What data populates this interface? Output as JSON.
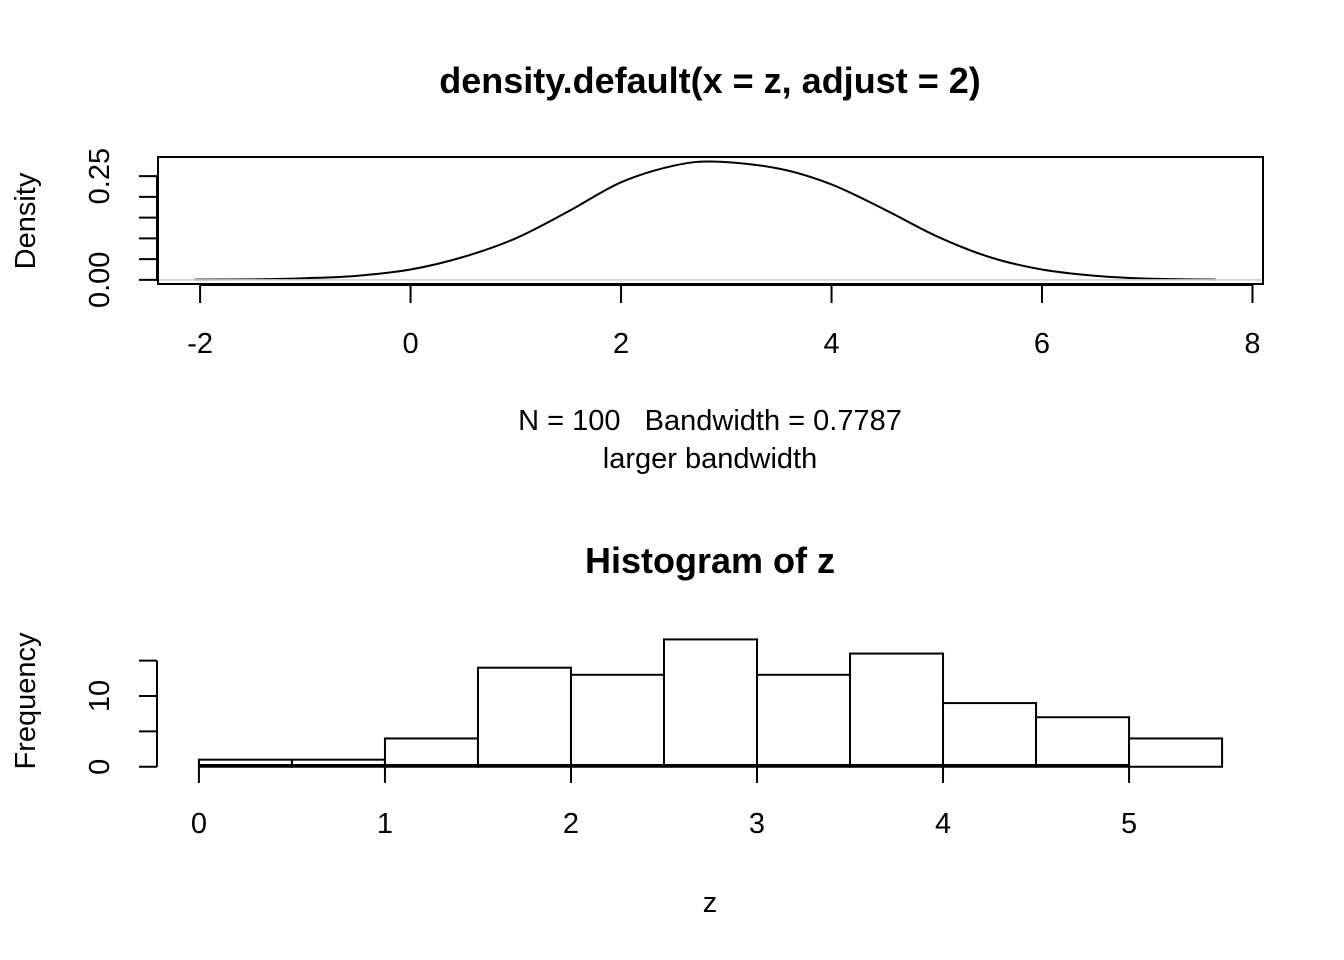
{
  "chart_data": [
    {
      "type": "line",
      "title": "density.default(x = z, adjust = 2)",
      "xlabel": "N = 100   Bandwidth = 0.7787",
      "subtitle": "larger bandwidth",
      "ylabel": "Density",
      "xlim": [
        -2.4,
        8.1
      ],
      "ylim": [
        -0.01,
        0.296
      ],
      "x_ticks": [
        "-2",
        "0",
        "2",
        "4",
        "6",
        "8"
      ],
      "y_ticks": [
        "0.00",
        "0.25"
      ],
      "y_minor_ticks": [
        0.05,
        0.1,
        0.15,
        0.2
      ],
      "grid": false,
      "x": [
        -2.05,
        -1.5,
        -1.0,
        -0.5,
        0.0,
        0.5,
        1.0,
        1.5,
        2.0,
        2.5,
        2.9,
        3.5,
        4.0,
        4.5,
        5.0,
        5.5,
        6.0,
        6.5,
        7.0,
        7.65
      ],
      "y": [
        0.0005,
        0.0012,
        0.004,
        0.01,
        0.025,
        0.055,
        0.1,
        0.165,
        0.235,
        0.275,
        0.285,
        0.268,
        0.23,
        0.17,
        0.105,
        0.055,
        0.025,
        0.01,
        0.003,
        0.0005
      ],
      "baseline": 0
    },
    {
      "type": "bar",
      "title": "Histogram of z",
      "xlabel": "z",
      "ylabel": "Frequency",
      "xlim": [
        -0.22,
        5.72
      ],
      "ylim": [
        -0.6,
        18.2
      ],
      "x_ticks": [
        "0",
        "1",
        "2",
        "3",
        "4",
        "5"
      ],
      "y_ticks": [
        "0",
        "10"
      ],
      "y_minor_ticks": [
        5,
        15
      ],
      "grid": false,
      "bins": [
        {
          "x0": 0.0,
          "x1": 0.5,
          "count": 1
        },
        {
          "x0": 0.5,
          "x1": 1.0,
          "count": 1
        },
        {
          "x0": 1.0,
          "x1": 1.5,
          "count": 4
        },
        {
          "x0": 1.5,
          "x1": 2.0,
          "count": 14
        },
        {
          "x0": 2.0,
          "x1": 2.5,
          "count": 13
        },
        {
          "x0": 2.5,
          "x1": 3.0,
          "count": 18
        },
        {
          "x0": 3.0,
          "x1": 3.5,
          "count": 13
        },
        {
          "x0": 3.5,
          "x1": 4.0,
          "count": 16
        },
        {
          "x0": 4.0,
          "x1": 4.5,
          "count": 9
        },
        {
          "x0": 4.5,
          "x1": 5.0,
          "count": 7
        },
        {
          "x0": 5.0,
          "x1": 5.5,
          "count": 4
        }
      ]
    }
  ]
}
